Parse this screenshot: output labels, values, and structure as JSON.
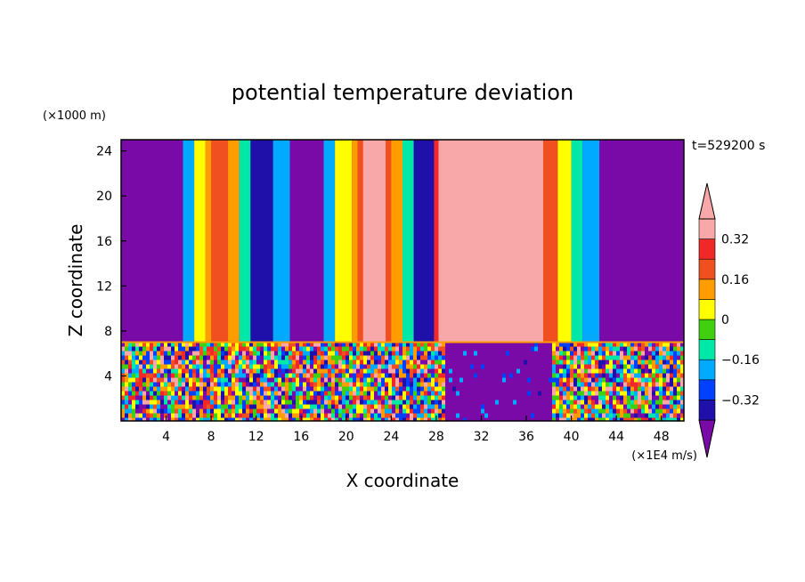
{
  "chart_data": {
    "type": "heatmap",
    "title": "potential temperature deviation",
    "xlabel": "X coordinate",
    "ylabel": "Z coordinate",
    "x_unit": "(×1E4 m/s)",
    "y_unit": "(×1000 m)",
    "time_label": "t=529200 s",
    "xlim": [
      0,
      50
    ],
    "ylim": [
      0,
      25
    ],
    "x_ticks": [
      4,
      8,
      12,
      16,
      20,
      24,
      28,
      32,
      36,
      40,
      44,
      48
    ],
    "y_ticks": [
      4,
      8,
      12,
      16,
      20,
      24
    ],
    "colorbar": {
      "levels": [
        -0.4,
        -0.32,
        -0.24,
        -0.16,
        -0.08,
        0,
        0.08,
        0.16,
        0.24,
        0.32,
        0.4
      ],
      "tick_labels": [
        "0.32",
        "0.16",
        "0",
        "−0.16",
        "−0.32"
      ],
      "tick_values": [
        0.32,
        0.16,
        0,
        -0.16,
        -0.32
      ],
      "colors": [
        "#7a0aa8",
        "#1e10a8",
        "#0040ff",
        "#00aaff",
        "#00e8a8",
        "#40d010",
        "#ffff00",
        "#ff9c00",
        "#f05020",
        "#f02828",
        "#f8a8a8"
      ]
    },
    "layers": {
      "upper_z_range": [
        7,
        25
      ],
      "lower_z_range": [
        0,
        7
      ],
      "upper_columns": [
        {
          "x": [
            0,
            5.5
          ],
          "color": "#7a0aa8"
        },
        {
          "x": [
            5.5,
            6.5
          ],
          "color": "#00aaff"
        },
        {
          "x": [
            6.5,
            7.5
          ],
          "color": "#ffff00"
        },
        {
          "x": [
            7.5,
            10.5
          ],
          "color": "#ff9c00"
        },
        {
          "x": [
            8.0,
            9.5
          ],
          "color": "#f05020"
        },
        {
          "x": [
            10.5,
            11.5
          ],
          "color": "#00e8a8"
        },
        {
          "x": [
            11.5,
            13.5
          ],
          "color": "#1e10a8"
        },
        {
          "x": [
            13.5,
            15.0
          ],
          "color": "#00aaff"
        },
        {
          "x": [
            15.0,
            18.0
          ],
          "color": "#7a0aa8"
        },
        {
          "x": [
            18.0,
            19.0
          ],
          "color": "#00aaff"
        },
        {
          "x": [
            19.0,
            20.5
          ],
          "color": "#ffff00"
        },
        {
          "x": [
            20.5,
            25.0
          ],
          "color": "#ff9c00"
        },
        {
          "x": [
            21.0,
            24.0
          ],
          "color": "#f05020"
        },
        {
          "x": [
            21.5,
            23.5
          ],
          "color": "#f8a8a8"
        },
        {
          "x": [
            25.0,
            26.0
          ],
          "color": "#00e8a8"
        },
        {
          "x": [
            26.0,
            27.8
          ],
          "color": "#1e10a8"
        },
        {
          "x": [
            27.8,
            28.2
          ],
          "color": "#f02828"
        },
        {
          "x": [
            28.2,
            37.5
          ],
          "color": "#f8a8a8"
        },
        {
          "x": [
            37.5,
            38.8
          ],
          "color": "#f05020"
        },
        {
          "x": [
            38.8,
            40.0
          ],
          "color": "#ffff00"
        },
        {
          "x": [
            40.0,
            41.0
          ],
          "color": "#00e8a8"
        },
        {
          "x": [
            41.0,
            42.5
          ],
          "color": "#00aaff"
        },
        {
          "x": [
            42.5,
            50.0
          ],
          "color": "#7a0aa8"
        }
      ]
    }
  }
}
